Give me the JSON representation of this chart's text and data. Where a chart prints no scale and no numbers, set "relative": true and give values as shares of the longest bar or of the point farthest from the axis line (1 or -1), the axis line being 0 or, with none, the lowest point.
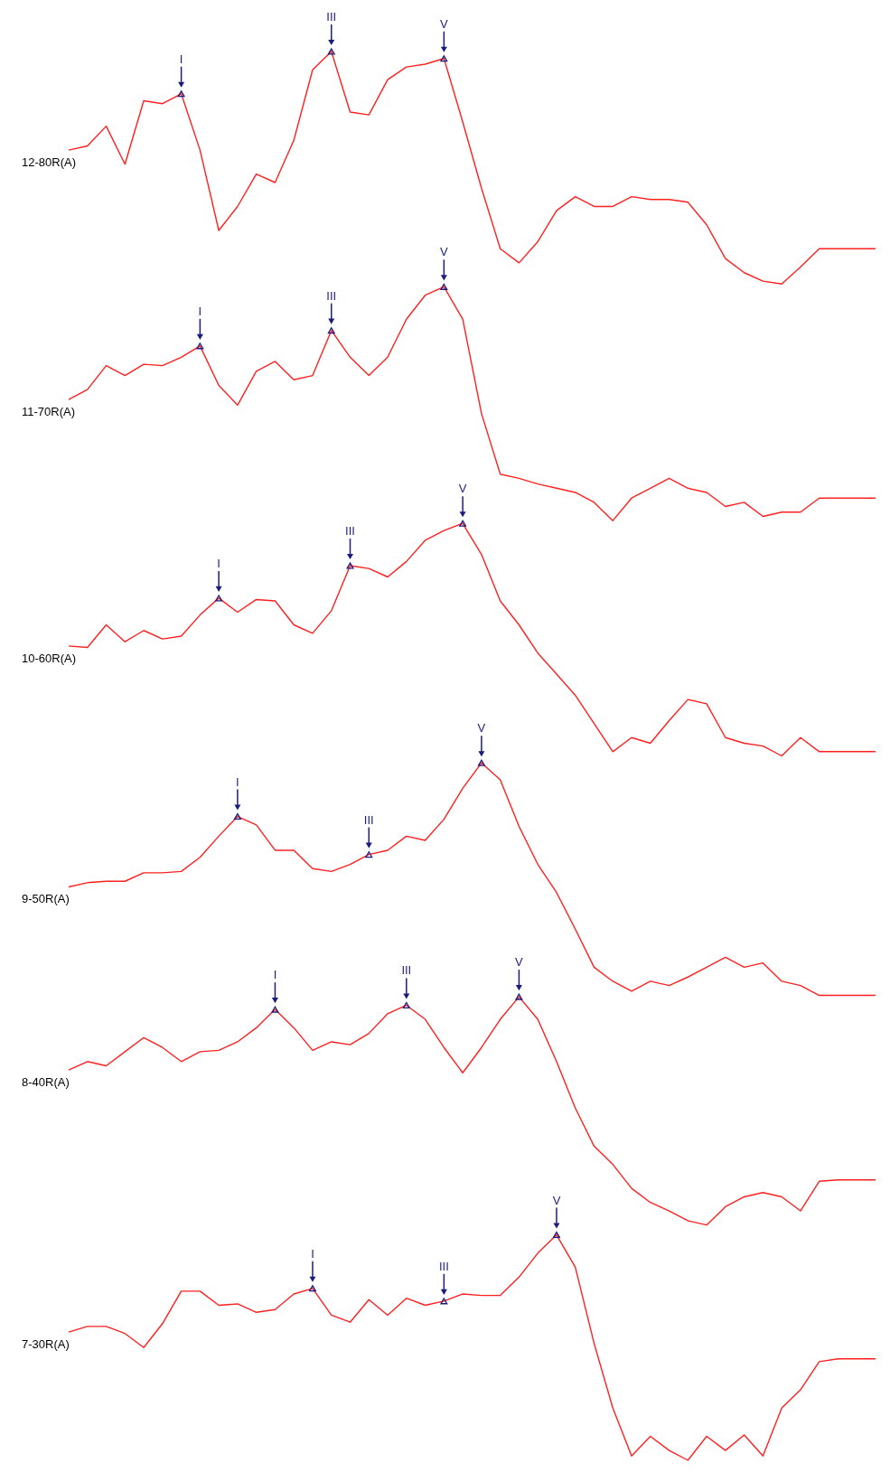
{
  "chart_data": {
    "type": "line",
    "relative": true,
    "categories": [
      null,
      null,
      null,
      null,
      null,
      null,
      null,
      null,
      null,
      null,
      null,
      null,
      null,
      null,
      null,
      null,
      null,
      null,
      null,
      null,
      null,
      null,
      null,
      null,
      null,
      null,
      null,
      null,
      null,
      null,
      null,
      null,
      null,
      null,
      null,
      null,
      null,
      null,
      null,
      null,
      null,
      null,
      null,
      null
    ],
    "series": [
      {
        "name": "12-80R(A)",
        "color": "#ff2020",
        "values": [
          0.93,
          0.933,
          0.947,
          0.92,
          0.965,
          0.963,
          0.97,
          0.93,
          0.873,
          0.89,
          0.913,
          0.907,
          0.937,
          0.987,
          1.0,
          0.957,
          0.955,
          0.98,
          0.989,
          0.991,
          0.995,
          0.95,
          0.903,
          0.86,
          0.85,
          0.865,
          0.887,
          0.897,
          0.89,
          0.89,
          0.897,
          0.895,
          0.895,
          0.893,
          0.877,
          0.853,
          0.843,
          0.837,
          0.835,
          0.847,
          0.86,
          0.86,
          0.86,
          0.86
        ]
      },
      {
        "name": "11-70R(A)",
        "color": "#ff2020",
        "values": [
          0.753,
          0.76,
          0.777,
          0.77,
          0.778,
          0.777,
          0.783,
          0.791,
          0.763,
          0.749,
          0.773,
          0.78,
          0.767,
          0.77,
          0.802,
          0.783,
          0.77,
          0.783,
          0.81,
          0.827,
          0.833,
          0.81,
          0.743,
          0.7,
          0.697,
          0.693,
          0.69,
          0.687,
          0.68,
          0.667,
          0.683,
          0.69,
          0.697,
          0.69,
          0.687,
          0.677,
          0.68,
          0.67,
          0.673,
          0.673,
          0.683,
          0.683,
          0.683,
          0.683
        ]
      },
      {
        "name": "10-60R(A)",
        "color": "#ff2020",
        "values": [
          0.578,
          0.577,
          0.593,
          0.581,
          0.589,
          0.583,
          0.585,
          0.6,
          0.612,
          0.602,
          0.611,
          0.61,
          0.593,
          0.587,
          0.603,
          0.635,
          0.633,
          0.627,
          0.638,
          0.653,
          0.66,
          0.665,
          0.643,
          0.61,
          0.593,
          0.573,
          0.558,
          0.543,
          0.523,
          0.503,
          0.513,
          0.509,
          0.525,
          0.54,
          0.537,
          0.513,
          0.509,
          0.507,
          0.5,
          0.513,
          0.503,
          0.503,
          0.503,
          0.503
        ]
      },
      {
        "name": "9-50R(A)",
        "color": "#ff2020",
        "values": [
          0.407,
          0.41,
          0.411,
          0.411,
          0.417,
          0.417,
          0.418,
          0.428,
          0.443,
          0.457,
          0.451,
          0.433,
          0.433,
          0.42,
          0.418,
          0.423,
          0.43,
          0.433,
          0.443,
          0.44,
          0.455,
          0.477,
          0.495,
          0.483,
          0.45,
          0.423,
          0.403,
          0.377,
          0.35,
          0.34,
          0.333,
          0.34,
          0.337,
          0.343,
          0.35,
          0.357,
          0.35,
          0.353,
          0.34,
          0.337,
          0.33,
          0.33,
          0.33,
          0.33
        ]
      },
      {
        "name": "8-40R(A)",
        "color": "#ff2020",
        "values": [
          0.277,
          0.283,
          0.28,
          0.29,
          0.3,
          0.293,
          0.283,
          0.29,
          0.291,
          0.297,
          0.307,
          0.32,
          0.307,
          0.291,
          0.297,
          0.295,
          0.303,
          0.317,
          0.323,
          0.313,
          0.293,
          0.275,
          0.293,
          0.313,
          0.329,
          0.313,
          0.283,
          0.25,
          0.223,
          0.21,
          0.193,
          0.183,
          0.177,
          0.17,
          0.167,
          0.18,
          0.187,
          0.19,
          0.187,
          0.177,
          0.198,
          0.199,
          0.199,
          0.199
        ]
      },
      {
        "name": "7-30R(A)",
        "color": "#ff2020",
        "values": [
          0.091,
          0.095,
          0.095,
          0.09,
          0.08,
          0.097,
          0.12,
          0.12,
          0.11,
          0.111,
          0.105,
          0.107,
          0.118,
          0.122,
          0.103,
          0.098,
          0.114,
          0.103,
          0.115,
          0.11,
          0.113,
          0.118,
          0.117,
          0.117,
          0.13,
          0.147,
          0.16,
          0.137,
          0.083,
          0.037,
          0.003,
          0.017,
          0.007,
          0.0,
          0.017,
          0.007,
          0.018,
          0.003,
          0.037,
          0.05,
          0.07,
          0.072,
          0.072,
          0.072
        ]
      }
    ],
    "annotations": [
      {
        "text": "I",
        "y": 0.97
      },
      {
        "text": "III",
        "y": 1.0
      },
      {
        "text": "V",
        "y": 0.995
      },
      {
        "text": "I",
        "y": 0.791
      },
      {
        "text": "III",
        "y": 0.802
      },
      {
        "text": "V",
        "y": 0.833
      },
      {
        "text": "I",
        "y": 0.612
      },
      {
        "text": "III",
        "y": 0.635
      },
      {
        "text": "V",
        "y": 0.665
      },
      {
        "text": "I",
        "y": 0.457
      },
      {
        "text": "III",
        "y": 0.43
      },
      {
        "text": "V",
        "y": 0.495
      },
      {
        "text": "I",
        "y": 0.32
      },
      {
        "text": "III",
        "y": 0.323
      },
      {
        "text": "V",
        "y": 0.329
      },
      {
        "text": "I",
        "y": 0.122
      },
      {
        "text": "III",
        "y": 0.113
      },
      {
        "text": "V",
        "y": 0.16
      }
    ]
  }
}
